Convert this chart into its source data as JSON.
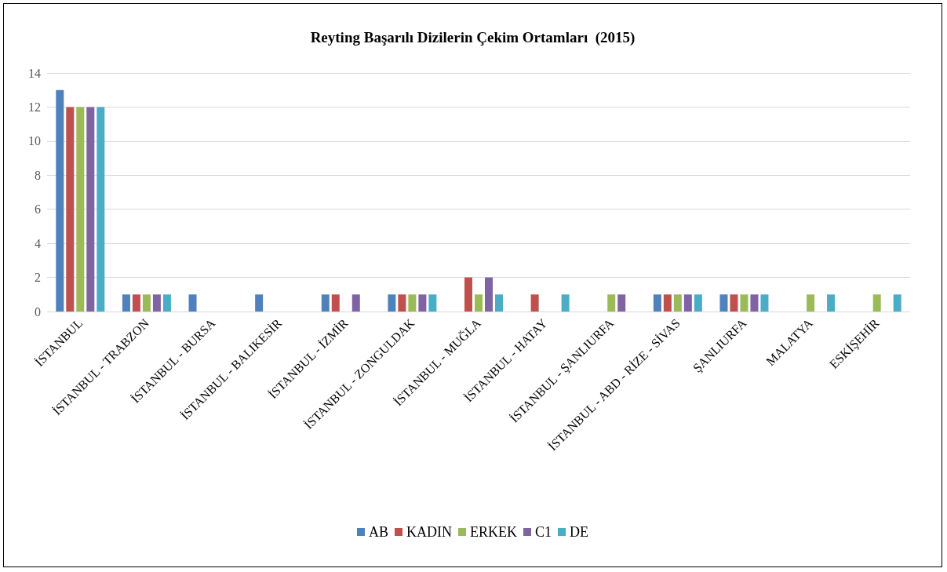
{
  "chart_data": {
    "type": "bar",
    "title": "Reyting Başarılı Dizilerin Çekim Ortamları  (2015)",
    "categories": [
      "İSTANBUL",
      "İSTANBUL - TRABZON",
      "İSTANBUL - BURSA",
      "İSTANBUL - BALIKESİR",
      "İSTANBUL - İZMİR",
      "İSTANBUL - ZONGULDAK",
      "İSTANBUL - MUĞLA",
      "İSTANBUL - HATAY",
      "İSTANBUL - ŞANLIURFA",
      "İSTANBUL - ABD - RİZE - SİVAS",
      "ŞANLIURFA",
      "MALATYA",
      "ESKİŞEHİR"
    ],
    "series": [
      {
        "name": "AB",
        "color": "#4f81bd",
        "values": [
          13,
          1,
          1,
          1,
          1,
          1,
          0,
          0,
          0,
          1,
          1,
          0,
          0
        ]
      },
      {
        "name": "KADIN",
        "color": "#c0504d",
        "values": [
          12,
          1,
          0,
          0,
          1,
          1,
          2,
          1,
          0,
          1,
          1,
          0,
          0
        ]
      },
      {
        "name": "ERKEK",
        "color": "#9bbb59",
        "values": [
          12,
          1,
          0,
          0,
          0,
          1,
          1,
          0,
          1,
          1,
          1,
          1,
          1
        ]
      },
      {
        "name": "C1",
        "color": "#8064a2",
        "values": [
          12,
          1,
          0,
          0,
          1,
          1,
          2,
          0,
          1,
          1,
          1,
          0,
          0
        ]
      },
      {
        "name": "DE",
        "color": "#4bacc6",
        "values": [
          12,
          1,
          0,
          0,
          0,
          1,
          1,
          1,
          0,
          1,
          1,
          1,
          1
        ]
      }
    ],
    "ylim": [
      0,
      14
    ],
    "yticks": [
      0,
      2,
      4,
      6,
      8,
      10,
      12,
      14
    ],
    "grid": "y",
    "legend": "bottom"
  }
}
